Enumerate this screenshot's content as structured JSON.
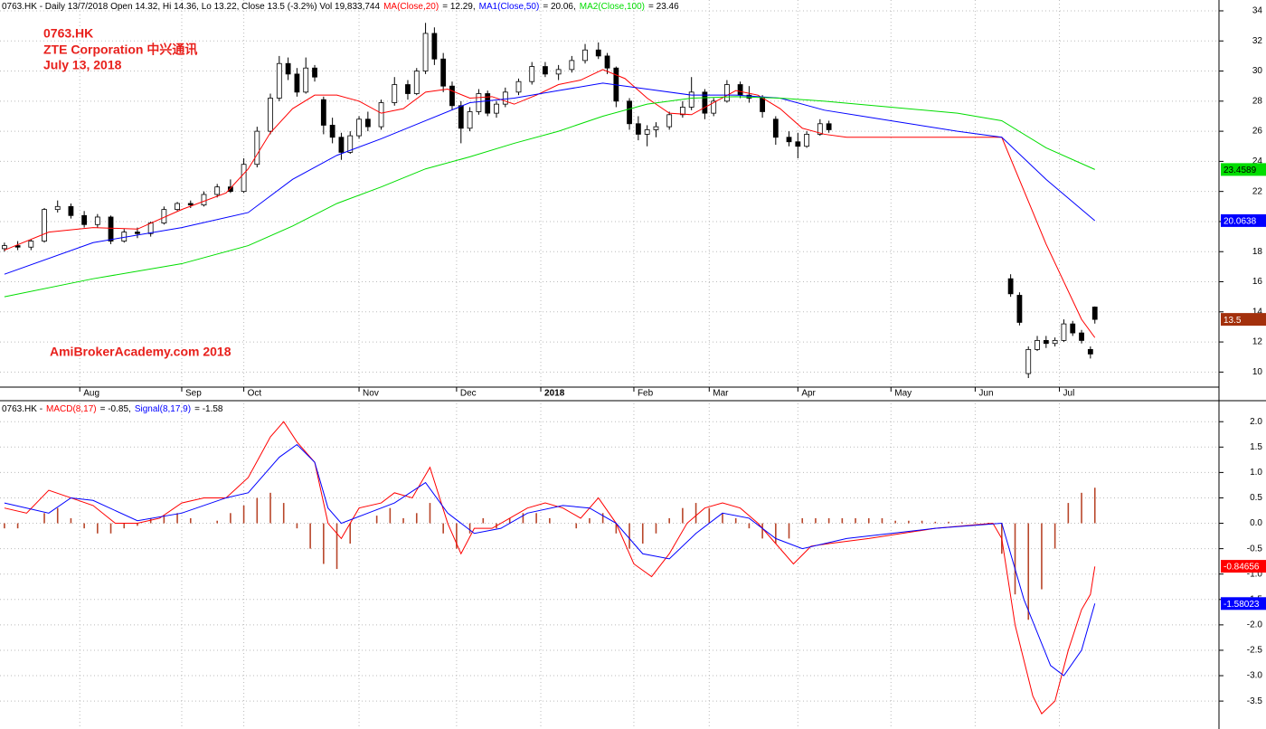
{
  "chart_data": [
    {
      "type": "candlestick",
      "title": "0763.HK - Daily 13/7/2018 Open 14.32, Hi 14.36, Lo 13.22, Close 13.5 (-3.2%) Vol 19,833,744",
      "annotations": [
        "0763.HK",
        "ZTE Corporation 中兴通讯",
        "July 13, 2018",
        "AmiBrokerAcademy.com  2018"
      ],
      "xlim": [
        -1,
        274
      ],
      "xticks": [
        {
          "value": 17,
          "label": "Aug"
        },
        {
          "value": 40,
          "label": "Sep"
        },
        {
          "value": 54,
          "label": "Oct"
        },
        {
          "value": 80,
          "label": "Nov"
        },
        {
          "value": 102,
          "label": "Dec"
        },
        {
          "value": 121,
          "label": "2018"
        },
        {
          "value": 142,
          "label": "Feb"
        },
        {
          "value": 159,
          "label": "Mar"
        },
        {
          "value": 179,
          "label": "Apr"
        },
        {
          "value": 200,
          "label": "May"
        },
        {
          "value": 219,
          "label": "Jun"
        },
        {
          "value": 238,
          "label": "Jul"
        }
      ],
      "ylim": [
        9.0,
        34.72
      ],
      "yticks": [
        10,
        12,
        14,
        16,
        18,
        20,
        22,
        24,
        26,
        28,
        30,
        32,
        34
      ],
      "grid": true,
      "up_color": "#ffffff",
      "down_color": "#000000",
      "candles": {
        "x": [
          0,
          3,
          6,
          9,
          12,
          15,
          18,
          21,
          24,
          27,
          30,
          33,
          36,
          39,
          42,
          45,
          48,
          51,
          54,
          57,
          60,
          62,
          64,
          66,
          68,
          70,
          72,
          74,
          76,
          78,
          80,
          82,
          85,
          88,
          91,
          93,
          95,
          97,
          99,
          101,
          103,
          105,
          107,
          109,
          111,
          113,
          116,
          119,
          122,
          125,
          128,
          131,
          134,
          136,
          138,
          141,
          143,
          145,
          147,
          150,
          153,
          155,
          158,
          160,
          163,
          166,
          168,
          171,
          174,
          177,
          179,
          181,
          184,
          186,
          227,
          229,
          231,
          233,
          235,
          237,
          239,
          241,
          243,
          245,
          246
        ],
        "open": [
          18.2,
          18.4,
          18.3,
          18.7,
          20.8,
          21.0,
          20.4,
          19.8,
          20.3,
          18.7,
          19.3,
          19.2,
          19.9,
          20.8,
          21.2,
          21.1,
          21.8,
          22.3,
          22.0,
          23.8,
          26.0,
          28.2,
          30.5,
          29.8,
          28.6,
          30.2,
          28.1,
          26.4,
          25.6,
          24.6,
          25.7,
          26.8,
          26.3,
          27.9,
          29.1,
          28.5,
          30.0,
          32.5,
          30.8,
          29.0,
          27.7,
          26.2,
          27.3,
          28.5,
          27.2,
          27.8,
          28.6,
          29.3,
          30.3,
          29.8,
          30.1,
          30.7,
          31.4,
          31.0,
          30.2,
          28.0,
          26.5,
          25.8,
          26.1,
          26.3,
          27.1,
          27.6,
          28.6,
          27.2,
          28.0,
          29.1,
          28.4,
          28.2,
          26.8,
          25.6,
          25.3,
          25.0,
          25.8,
          26.5,
          16.2,
          15.1,
          9.9,
          11.5,
          12.1,
          11.9,
          12.1,
          13.2,
          12.6,
          11.5,
          14.32
        ],
        "high": [
          18.6,
          18.7,
          18.8,
          20.9,
          21.4,
          21.2,
          20.7,
          20.5,
          20.4,
          19.5,
          19.6,
          20.0,
          21.0,
          21.3,
          21.4,
          22.0,
          22.5,
          22.8,
          24.2,
          26.3,
          28.5,
          31.0,
          30.9,
          30.2,
          30.9,
          30.4,
          28.3,
          26.9,
          25.9,
          26.0,
          27.0,
          27.3,
          28.1,
          29.6,
          29.4,
          30.2,
          33.2,
          32.9,
          31.2,
          29.3,
          28.0,
          27.6,
          28.8,
          28.7,
          28.0,
          28.9,
          29.5,
          30.6,
          30.6,
          30.4,
          31.0,
          31.8,
          31.9,
          31.2,
          30.3,
          28.2,
          27.0,
          26.4,
          26.6,
          27.3,
          28.0,
          29.6,
          28.8,
          28.2,
          29.4,
          29.3,
          29.0,
          28.4,
          27.0,
          26.0,
          25.9,
          26.0,
          26.8,
          26.7,
          16.5,
          15.3,
          11.7,
          12.4,
          12.4,
          12.3,
          13.5,
          13.4,
          12.8,
          11.7,
          14.36
        ],
        "low": [
          18.0,
          18.1,
          18.1,
          18.6,
          20.6,
          20.2,
          19.6,
          19.6,
          18.5,
          18.6,
          18.9,
          19.0,
          19.8,
          20.7,
          20.9,
          21.0,
          21.6,
          21.9,
          21.9,
          23.6,
          25.8,
          28.0,
          29.4,
          28.3,
          28.5,
          29.3,
          25.8,
          25.2,
          24.1,
          24.5,
          25.5,
          26.0,
          26.1,
          27.7,
          28.1,
          28.4,
          29.8,
          30.4,
          28.6,
          27.4,
          25.2,
          26.0,
          27.1,
          27.0,
          26.9,
          27.6,
          28.4,
          29.1,
          29.6,
          29.4,
          29.9,
          30.5,
          30.8,
          29.8,
          27.6,
          26.1,
          25.4,
          25.0,
          25.6,
          26.1,
          26.9,
          27.4,
          26.8,
          27.0,
          27.9,
          28.2,
          27.9,
          26.9,
          25.1,
          25.0,
          24.2,
          24.9,
          25.7,
          25.9,
          15.0,
          13.1,
          9.6,
          11.4,
          11.6,
          11.7,
          12.0,
          12.4,
          11.9,
          10.9,
          13.22
        ],
        "close": [
          18.4,
          18.3,
          18.7,
          20.8,
          21.0,
          20.4,
          19.8,
          20.3,
          18.7,
          19.3,
          19.2,
          19.9,
          20.8,
          21.2,
          21.1,
          21.8,
          22.3,
          22.0,
          23.8,
          26.0,
          28.2,
          30.5,
          29.8,
          28.6,
          30.2,
          29.6,
          26.4,
          25.6,
          24.6,
          25.7,
          26.8,
          26.3,
          27.9,
          29.1,
          28.5,
          30.0,
          32.5,
          30.8,
          29.0,
          27.7,
          26.2,
          27.3,
          28.5,
          27.2,
          27.8,
          28.6,
          29.3,
          30.3,
          29.8,
          30.1,
          30.7,
          31.4,
          31.0,
          30.2,
          28.0,
          26.5,
          25.8,
          26.1,
          26.3,
          27.1,
          27.6,
          28.6,
          27.2,
          28.0,
          29.1,
          28.4,
          28.2,
          27.3,
          25.6,
          25.3,
          25.0,
          25.8,
          26.5,
          26.1,
          15.2,
          13.3,
          11.5,
          12.1,
          11.9,
          12.1,
          13.2,
          12.6,
          12.1,
          11.2,
          13.5
        ]
      },
      "series": [
        {
          "name": "MA(Close,20)",
          "legend_text": "= 12.29,",
          "color": "#ff0000",
          "x": [
            0,
            10,
            20,
            30,
            40,
            50,
            55,
            60,
            65,
            70,
            75,
            80,
            85,
            90,
            95,
            100,
            105,
            110,
            115,
            120,
            125,
            130,
            135,
            140,
            145,
            150,
            155,
            160,
            165,
            170,
            175,
            180,
            185,
            190,
            200,
            210,
            225,
            235,
            243,
            246
          ],
          "values": [
            18.1,
            19.3,
            19.6,
            19.5,
            20.8,
            21.9,
            23.5,
            25.9,
            27.5,
            28.4,
            28.4,
            28.0,
            27.2,
            27.5,
            28.6,
            28.8,
            28.2,
            28.3,
            27.8,
            28.4,
            29.1,
            29.4,
            30.1,
            29.5,
            28.2,
            27.2,
            27.1,
            27.9,
            28.7,
            28.4,
            27.5,
            26.2,
            25.8,
            25.6,
            25.6,
            25.6,
            25.6,
            18.5,
            13.5,
            12.29
          ]
        },
        {
          "name": "MA1(Close,50)",
          "legend_text": "= 20.06,",
          "color": "#0000ff",
          "last_value": 20.0638,
          "x": [
            0,
            20,
            40,
            55,
            65,
            75,
            85,
            95,
            105,
            115,
            125,
            135,
            145,
            155,
            165,
            175,
            185,
            200,
            215,
            225,
            235,
            246
          ],
          "values": [
            16.5,
            18.6,
            19.6,
            20.6,
            22.8,
            24.4,
            25.5,
            26.7,
            27.9,
            28.2,
            28.7,
            29.2,
            28.8,
            28.4,
            28.4,
            28.2,
            27.4,
            26.7,
            26.0,
            25.6,
            22.8,
            20.06
          ]
        },
        {
          "name": "MA2(Close,100)",
          "legend_text": "= 23.46",
          "color": "#00dd00",
          "last_value": 23.4589,
          "x": [
            0,
            20,
            40,
            55,
            65,
            75,
            85,
            95,
            105,
            115,
            125,
            135,
            145,
            155,
            165,
            175,
            185,
            200,
            215,
            225,
            235,
            246
          ],
          "values": [
            15.0,
            16.2,
            17.2,
            18.4,
            19.7,
            21.2,
            22.3,
            23.5,
            24.3,
            25.2,
            26.0,
            27.0,
            27.8,
            28.2,
            28.3,
            28.2,
            28.0,
            27.6,
            27.2,
            26.7,
            24.9,
            23.46
          ]
        }
      ]
    },
    {
      "type": "macd",
      "title": "0763.HK -",
      "xlim": [
        -1,
        274
      ],
      "ylim": [
        -4.05,
        2.36
      ],
      "yticks": [
        {
          "value": 2,
          "label": "2.0"
        },
        1.5,
        {
          "value": 1,
          "label": "1.0"
        },
        0.5,
        {
          "value": 0,
          "label": "0.0"
        },
        -0.5,
        {
          "value": -1,
          "label": "-1.0"
        },
        -1.5,
        {
          "value": -2,
          "label": "-2.0"
        },
        -2.5,
        {
          "value": -3,
          "label": "-3.0"
        },
        -3.5
      ],
      "grid": true,
      "series": [
        {
          "name": "MACD(8,17)",
          "legend_text": "= -0.85,",
          "color": "#ff0000",
          "last_value": -0.84656,
          "x": [
            0,
            5,
            10,
            15,
            20,
            25,
            30,
            35,
            40,
            45,
            50,
            55,
            60,
            63,
            66,
            70,
            73,
            76,
            80,
            85,
            88,
            92,
            96,
            100,
            103,
            106,
            110,
            114,
            118,
            122,
            126,
            130,
            134,
            138,
            142,
            146,
            150,
            154,
            158,
            162,
            166,
            170,
            174,
            178,
            182,
            186,
            195,
            210,
            223,
            225,
            228,
            232,
            234,
            237,
            240,
            243,
            245,
            246
          ],
          "values": [
            0.3,
            0.2,
            0.65,
            0.5,
            0.35,
            0.0,
            0.0,
            0.1,
            0.4,
            0.5,
            0.5,
            0.9,
            1.7,
            2.0,
            1.6,
            1.2,
            0.0,
            -0.3,
            0.3,
            0.4,
            0.6,
            0.5,
            1.1,
            0.0,
            -0.6,
            -0.1,
            -0.1,
            0.1,
            0.3,
            0.4,
            0.3,
            0.1,
            0.5,
            0.0,
            -0.8,
            -1.05,
            -0.6,
            0.0,
            0.3,
            0.4,
            0.3,
            0.0,
            -0.4,
            -0.8,
            -0.45,
            -0.4,
            -0.3,
            -0.1,
            0.0,
            -0.3,
            -2.0,
            -3.4,
            -3.75,
            -3.5,
            -2.5,
            -1.7,
            -1.4,
            -0.85
          ]
        },
        {
          "name": "Signal(8,17,9)",
          "legend_text": "= -1.58",
          "color": "#0000ff",
          "last_value": -1.58023,
          "x": [
            0,
            10,
            15,
            20,
            30,
            40,
            50,
            55,
            62,
            66,
            70,
            73,
            76,
            82,
            88,
            95,
            100,
            106,
            112,
            118,
            126,
            132,
            138,
            144,
            150,
            156,
            162,
            168,
            174,
            180,
            190,
            210,
            225,
            230,
            236,
            239,
            243,
            246
          ],
          "values": [
            0.4,
            0.2,
            0.5,
            0.45,
            0.05,
            0.2,
            0.5,
            0.6,
            1.3,
            1.55,
            1.2,
            0.3,
            0.0,
            0.2,
            0.4,
            0.8,
            0.2,
            -0.2,
            -0.1,
            0.2,
            0.35,
            0.3,
            0.0,
            -0.6,
            -0.7,
            -0.2,
            0.2,
            0.1,
            -0.3,
            -0.5,
            -0.3,
            -0.1,
            0.0,
            -1.5,
            -2.8,
            -3.0,
            -2.5,
            -1.58
          ]
        }
      ],
      "histogram": {
        "color": "#b8462a",
        "x": [
          0,
          3,
          6,
          9,
          12,
          15,
          18,
          21,
          24,
          27,
          30,
          33,
          36,
          39,
          42,
          45,
          48,
          51,
          54,
          57,
          60,
          63,
          66,
          69,
          72,
          75,
          78,
          81,
          84,
          87,
          90,
          93,
          96,
          99,
          102,
          105,
          108,
          111,
          114,
          117,
          120,
          123,
          126,
          129,
          132,
          135,
          138,
          141,
          144,
          147,
          150,
          153,
          156,
          159,
          162,
          165,
          168,
          171,
          174,
          177,
          180,
          183,
          186,
          189,
          192,
          195,
          198,
          201,
          204,
          207,
          210,
          213,
          216,
          219,
          222,
          225,
          228,
          231,
          234,
          237,
          240,
          243,
          246
        ],
        "values": [
          -0.1,
          -0.1,
          0.0,
          0.2,
          0.3,
          0.1,
          -0.1,
          -0.2,
          -0.2,
          -0.1,
          -0.05,
          0.1,
          0.15,
          0.2,
          0.1,
          0.0,
          0.05,
          0.2,
          0.35,
          0.5,
          0.6,
          0.4,
          -0.1,
          -0.5,
          -0.8,
          -0.9,
          -0.4,
          0.0,
          0.15,
          0.3,
          0.1,
          0.2,
          0.4,
          -0.2,
          -0.5,
          -0.2,
          0.1,
          -0.1,
          0.1,
          0.2,
          0.2,
          0.1,
          0.0,
          -0.1,
          0.1,
          0.2,
          -0.2,
          -0.5,
          -0.4,
          -0.2,
          0.1,
          0.3,
          0.4,
          0.3,
          0.2,
          0.1,
          -0.1,
          -0.3,
          -0.4,
          -0.3,
          0.1,
          0.1,
          0.1,
          0.1,
          0.1,
          0.1,
          0.1,
          0.05,
          0.05,
          0.05,
          0.03,
          0.03,
          0.02,
          0.02,
          0.01,
          -0.6,
          -1.4,
          -1.9,
          -1.3,
          -0.5,
          0.4,
          0.6,
          0.7
        ]
      }
    }
  ]
}
